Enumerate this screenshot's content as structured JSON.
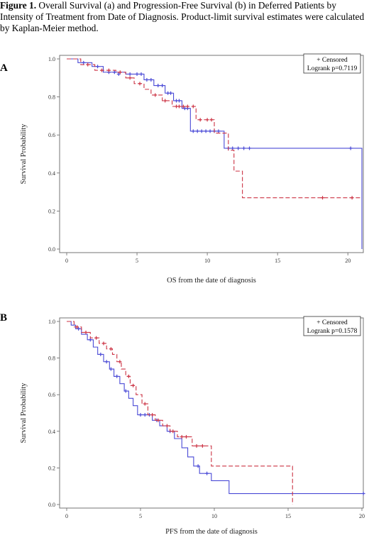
{
  "caption": {
    "label": "Figure 1.",
    "text": " Overall Survival (a) and Progression-Free Survival (b) in Deferred Patients by Intensity of Treatment from Date of Diagnosis. Product-limit survival estimates were calculated by Kaplan-Meier method."
  },
  "colors": {
    "blue": "#4a4ad6",
    "red": "#cc3344",
    "axis": "#666666"
  },
  "chart_data": [
    {
      "panel": "A",
      "type": "line",
      "step": true,
      "xlabel": "OS from the date of diagnosis",
      "ylabel": "Survival Probability",
      "xlim": [
        0,
        21
      ],
      "ylim": [
        0,
        1
      ],
      "xticks": [
        "0",
        "5",
        "10",
        "15",
        "20"
      ],
      "yticks": [
        "0.0",
        "0.2",
        "0.4",
        "0.6",
        "0.8",
        "1.0"
      ],
      "legend": [
        "+ Censored",
        "Logrank p=0.7119"
      ],
      "series": [
        {
          "color": "blue",
          "dashed": false,
          "steps": [
            [
              0,
              1.0
            ],
            [
              0.8,
              0.98
            ],
            [
              1.8,
              0.96
            ],
            [
              2.6,
              0.93
            ],
            [
              4.2,
              0.92
            ],
            [
              5.5,
              0.89
            ],
            [
              6.2,
              0.86
            ],
            [
              7.0,
              0.82
            ],
            [
              7.6,
              0.78
            ],
            [
              8.2,
              0.74
            ],
            [
              8.8,
              0.62
            ],
            [
              11.2,
              0.53
            ],
            [
              21,
              0.53
            ],
            [
              21,
              0.0
            ]
          ],
          "censored": [
            [
              1.2,
              0.98
            ],
            [
              2.2,
              0.96
            ],
            [
              3.0,
              0.93
            ],
            [
              3.4,
              0.93
            ],
            [
              3.7,
              0.92
            ],
            [
              4.5,
              0.92
            ],
            [
              5.0,
              0.92
            ],
            [
              5.3,
              0.92
            ],
            [
              5.7,
              0.89
            ],
            [
              6.0,
              0.89
            ],
            [
              6.5,
              0.86
            ],
            [
              6.8,
              0.86
            ],
            [
              7.2,
              0.82
            ],
            [
              7.4,
              0.82
            ],
            [
              7.8,
              0.78
            ],
            [
              8.0,
              0.78
            ],
            [
              8.4,
              0.74
            ],
            [
              8.6,
              0.74
            ],
            [
              9.0,
              0.62
            ],
            [
              9.3,
              0.62
            ],
            [
              9.6,
              0.62
            ],
            [
              9.9,
              0.62
            ],
            [
              10.2,
              0.62
            ],
            [
              10.5,
              0.62
            ],
            [
              10.8,
              0.62
            ],
            [
              11.5,
              0.53
            ],
            [
              11.8,
              0.53
            ],
            [
              12.2,
              0.53
            ],
            [
              12.6,
              0.53
            ],
            [
              13.0,
              0.53
            ],
            [
              20.2,
              0.53
            ]
          ]
        },
        {
          "color": "red",
          "dashed": true,
          "steps": [
            [
              0,
              1.0
            ],
            [
              1.0,
              0.97
            ],
            [
              2.0,
              0.94
            ],
            [
              3.5,
              0.93
            ],
            [
              4.2,
              0.9
            ],
            [
              4.8,
              0.87
            ],
            [
              5.5,
              0.84
            ],
            [
              6.0,
              0.81
            ],
            [
              6.8,
              0.78
            ],
            [
              7.5,
              0.75
            ],
            [
              9.2,
              0.68
            ],
            [
              10.5,
              0.61
            ],
            [
              11.5,
              0.52
            ],
            [
              11.9,
              0.41
            ],
            [
              12.5,
              0.27
            ],
            [
              21,
              0.27
            ]
          ],
          "censored": [
            [
              1.5,
              0.97
            ],
            [
              2.5,
              0.94
            ],
            [
              3.0,
              0.94
            ],
            [
              3.8,
              0.93
            ],
            [
              4.5,
              0.9
            ],
            [
              5.2,
              0.87
            ],
            [
              6.3,
              0.81
            ],
            [
              7.0,
              0.78
            ],
            [
              7.8,
              0.75
            ],
            [
              8.0,
              0.75
            ],
            [
              8.3,
              0.75
            ],
            [
              8.6,
              0.75
            ],
            [
              9.0,
              0.75
            ],
            [
              9.5,
              0.68
            ],
            [
              10.0,
              0.68
            ],
            [
              10.3,
              0.68
            ],
            [
              18.2,
              0.27
            ],
            [
              20.3,
              0.27
            ]
          ]
        }
      ]
    },
    {
      "panel": "B",
      "type": "line",
      "step": true,
      "xlabel": "PFS from the date of diagnosis",
      "ylabel": "Survival Probability",
      "xlim": [
        0,
        20
      ],
      "ylim": [
        0,
        1
      ],
      "xticks": [
        "0",
        "5",
        "10",
        "15",
        "20"
      ],
      "yticks": [
        "0.0",
        "0.2",
        "0.4",
        "0.6",
        "0.8",
        "1.0"
      ],
      "legend": [
        "+ Censored",
        "Logrank p=0.1578"
      ],
      "series": [
        {
          "color": "blue",
          "dashed": false,
          "steps": [
            [
              0,
              1.0
            ],
            [
              0.3,
              0.98
            ],
            [
              0.6,
              0.96
            ],
            [
              1.0,
              0.93
            ],
            [
              1.4,
              0.9
            ],
            [
              1.8,
              0.86
            ],
            [
              2.1,
              0.82
            ],
            [
              2.5,
              0.78
            ],
            [
              2.9,
              0.74
            ],
            [
              3.2,
              0.7
            ],
            [
              3.6,
              0.66
            ],
            [
              3.9,
              0.62
            ],
            [
              4.2,
              0.58
            ],
            [
              4.5,
              0.54
            ],
            [
              4.8,
              0.49
            ],
            [
              5.8,
              0.46
            ],
            [
              6.3,
              0.43
            ],
            [
              6.8,
              0.4
            ],
            [
              7.3,
              0.36
            ],
            [
              7.8,
              0.31
            ],
            [
              8.2,
              0.26
            ],
            [
              8.6,
              0.21
            ],
            [
              9.0,
              0.17
            ],
            [
              9.8,
              0.13
            ],
            [
              11.0,
              0.06
            ],
            [
              20,
              0.06
            ]
          ],
          "censored": [
            [
              0.8,
              0.96
            ],
            [
              1.6,
              0.9
            ],
            [
              2.3,
              0.82
            ],
            [
              2.7,
              0.78
            ],
            [
              3.0,
              0.74
            ],
            [
              3.4,
              0.7
            ],
            [
              4.0,
              0.62
            ],
            [
              5.0,
              0.49
            ],
            [
              5.3,
              0.49
            ],
            [
              5.6,
              0.49
            ],
            [
              6.1,
              0.46
            ],
            [
              7.0,
              0.4
            ],
            [
              8.9,
              0.21
            ],
            [
              9.5,
              0.17
            ],
            [
              20.1,
              0.06
            ]
          ]
        },
        {
          "color": "red",
          "dashed": true,
          "steps": [
            [
              0,
              1.0
            ],
            [
              0.5,
              0.97
            ],
            [
              1.0,
              0.94
            ],
            [
              1.6,
              0.91
            ],
            [
              2.2,
              0.88
            ],
            [
              2.7,
              0.85
            ],
            [
              3.1,
              0.82
            ],
            [
              3.4,
              0.78
            ],
            [
              3.7,
              0.74
            ],
            [
              4.0,
              0.7
            ],
            [
              4.3,
              0.65
            ],
            [
              4.7,
              0.6
            ],
            [
              5.1,
              0.55
            ],
            [
              5.5,
              0.49
            ],
            [
              6.0,
              0.46
            ],
            [
              6.5,
              0.43
            ],
            [
              7.0,
              0.4
            ],
            [
              7.5,
              0.37
            ],
            [
              8.5,
              0.32
            ],
            [
              9.8,
              0.21
            ],
            [
              15.3,
              0.0
            ]
          ],
          "censored": [
            [
              0.7,
              0.97
            ],
            [
              1.3,
              0.94
            ],
            [
              2.0,
              0.91
            ],
            [
              2.5,
              0.88
            ],
            [
              3.0,
              0.85
            ],
            [
              3.6,
              0.78
            ],
            [
              4.2,
              0.7
            ],
            [
              4.5,
              0.65
            ],
            [
              5.3,
              0.55
            ],
            [
              5.8,
              0.49
            ],
            [
              6.2,
              0.46
            ],
            [
              6.8,
              0.43
            ],
            [
              7.2,
              0.4
            ],
            [
              7.8,
              0.37
            ],
            [
              8.1,
              0.37
            ],
            [
              8.8,
              0.32
            ],
            [
              9.2,
              0.32
            ]
          ]
        }
      ]
    }
  ]
}
